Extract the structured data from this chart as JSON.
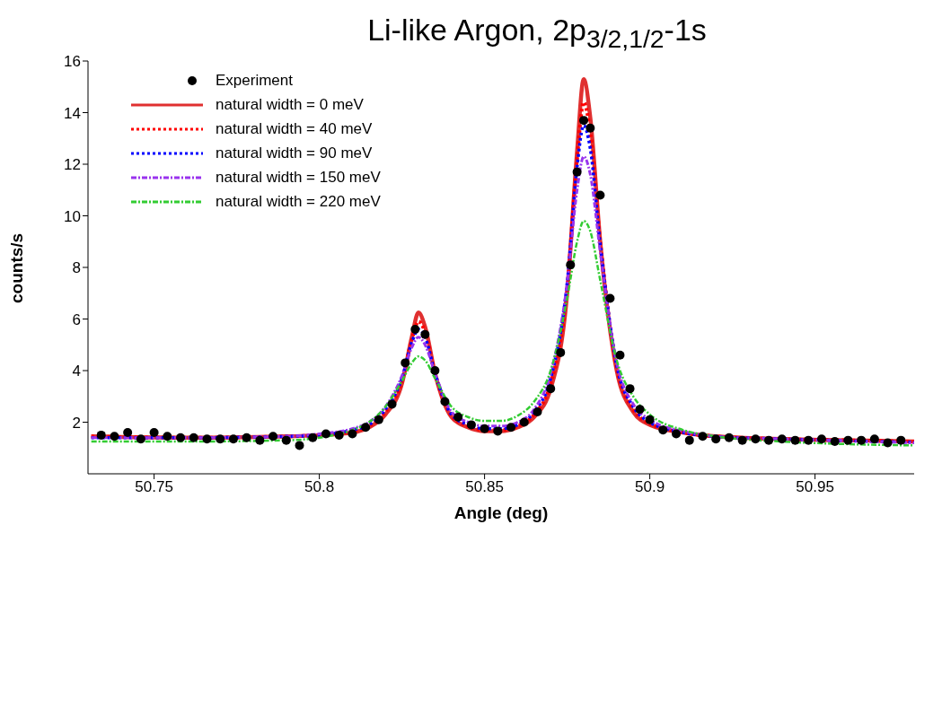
{
  "chart_data": {
    "type": "line",
    "title": "Li-like Argon, 2p$_{3/2,1/2}$-1s",
    "xlabel": "Angle (deg)",
    "ylabel": "counts/s",
    "xlim": [
      50.73,
      50.98
    ],
    "xticks": [
      50.75,
      50.8,
      50.85,
      50.9,
      50.95
    ],
    "ylim": [
      0,
      16
    ],
    "yticks": [
      2,
      4,
      6,
      8,
      10,
      12,
      14,
      16
    ],
    "grid": false,
    "legend": "top left",
    "x": [
      50.731,
      50.76,
      50.79,
      50.8,
      50.81,
      50.815,
      50.82,
      50.825,
      50.828,
      50.83,
      50.832,
      50.835,
      50.84,
      50.845,
      50.85,
      50.855,
      50.86,
      50.865,
      50.87,
      50.875,
      50.878,
      50.88,
      50.882,
      50.885,
      50.89,
      50.895,
      50.9,
      50.91,
      50.92,
      50.94,
      50.96,
      50.98
    ],
    "series": [
      {
        "name": "Experiment",
        "type": "scatter",
        "marker": "circle",
        "color": "#000000",
        "x": [
          50.734,
          50.738,
          50.742,
          50.746,
          50.75,
          50.754,
          50.758,
          50.762,
          50.766,
          50.77,
          50.774,
          50.778,
          50.782,
          50.786,
          50.79,
          50.794,
          50.798,
          50.802,
          50.806,
          50.81,
          50.814,
          50.818,
          50.822,
          50.826,
          50.829,
          50.832,
          50.835,
          50.838,
          50.842,
          50.846,
          50.85,
          50.854,
          50.858,
          50.862,
          50.866,
          50.87,
          50.873,
          50.876,
          50.878,
          50.88,
          50.882,
          50.885,
          50.888,
          50.891,
          50.894,
          50.897,
          50.9,
          50.904,
          50.908,
          50.912,
          50.916,
          50.92,
          50.924,
          50.928,
          50.932,
          50.936,
          50.94,
          50.944,
          50.948,
          50.952,
          50.956,
          50.96,
          50.964,
          50.968,
          50.972,
          50.976
        ],
        "values": [
          1.5,
          1.45,
          1.6,
          1.35,
          1.6,
          1.45,
          1.4,
          1.4,
          1.35,
          1.35,
          1.35,
          1.4,
          1.3,
          1.45,
          1.3,
          1.1,
          1.4,
          1.55,
          1.5,
          1.55,
          1.8,
          2.1,
          2.7,
          4.3,
          5.6,
          5.4,
          4.0,
          2.8,
          2.2,
          1.9,
          1.75,
          1.65,
          1.8,
          2.0,
          2.4,
          3.3,
          4.7,
          8.1,
          11.7,
          13.7,
          13.4,
          10.8,
          6.8,
          4.6,
          3.3,
          2.5,
          2.1,
          1.7,
          1.55,
          1.3,
          1.45,
          1.35,
          1.4,
          1.3,
          1.35,
          1.3,
          1.35,
          1.3,
          1.3,
          1.35,
          1.25,
          1.3,
          1.3,
          1.35,
          1.2,
          1.3
        ]
      },
      {
        "name": "natural width = 0 meV",
        "color": "#e03030",
        "line_style": "solid",
        "values": [
          1.45,
          1.4,
          1.45,
          1.5,
          1.6,
          1.8,
          2.3,
          3.5,
          5.3,
          6.25,
          5.7,
          3.9,
          2.2,
          1.8,
          1.65,
          1.65,
          1.8,
          2.2,
          3.3,
          7.0,
          12.5,
          15.3,
          13.8,
          9.0,
          4.0,
          2.4,
          1.9,
          1.6,
          1.45,
          1.35,
          1.3,
          1.25
        ]
      },
      {
        "name": "natural width = 40 meV",
        "color": "#ff0000",
        "line_style": "dotted",
        "values": [
          1.45,
          1.4,
          1.45,
          1.5,
          1.65,
          1.85,
          2.4,
          3.6,
          5.2,
          5.9,
          5.5,
          3.9,
          2.25,
          1.85,
          1.7,
          1.7,
          1.85,
          2.3,
          3.5,
          7.2,
          12.2,
          14.4,
          13.2,
          9.0,
          4.1,
          2.5,
          1.95,
          1.6,
          1.45,
          1.35,
          1.3,
          1.25
        ]
      },
      {
        "name": "natural width = 90 meV",
        "color": "#0000ff",
        "line_style": "dotted",
        "values": [
          1.4,
          1.4,
          1.45,
          1.5,
          1.7,
          1.9,
          2.5,
          3.7,
          5.1,
          5.6,
          5.3,
          3.9,
          2.3,
          1.9,
          1.75,
          1.75,
          1.9,
          2.4,
          3.7,
          7.4,
          11.9,
          13.5,
          12.6,
          8.9,
          4.2,
          2.6,
          2.0,
          1.6,
          1.45,
          1.35,
          1.28,
          1.22
        ]
      },
      {
        "name": "natural width = 150 meV",
        "color": "#9933ee",
        "line_style": "dashed",
        "values": [
          1.4,
          1.4,
          1.45,
          1.55,
          1.75,
          2.0,
          2.6,
          3.8,
          4.9,
          5.3,
          5.0,
          3.9,
          2.4,
          2.0,
          1.85,
          1.85,
          2.0,
          2.5,
          3.9,
          7.4,
          11.0,
          12.3,
          11.6,
          8.6,
          4.3,
          2.7,
          2.1,
          1.65,
          1.45,
          1.35,
          1.28,
          1.2
        ]
      },
      {
        "name": "natural width = 220 meV",
        "color": "#33cc33",
        "line_style": "dashed",
        "values": [
          1.25,
          1.25,
          1.3,
          1.4,
          1.7,
          2.0,
          2.6,
          3.6,
          4.3,
          4.55,
          4.4,
          3.7,
          2.6,
          2.2,
          2.05,
          2.05,
          2.25,
          2.8,
          4.0,
          6.8,
          9.0,
          9.8,
          9.4,
          7.5,
          4.4,
          3.0,
          2.3,
          1.7,
          1.45,
          1.25,
          1.15,
          1.1
        ]
      }
    ]
  }
}
